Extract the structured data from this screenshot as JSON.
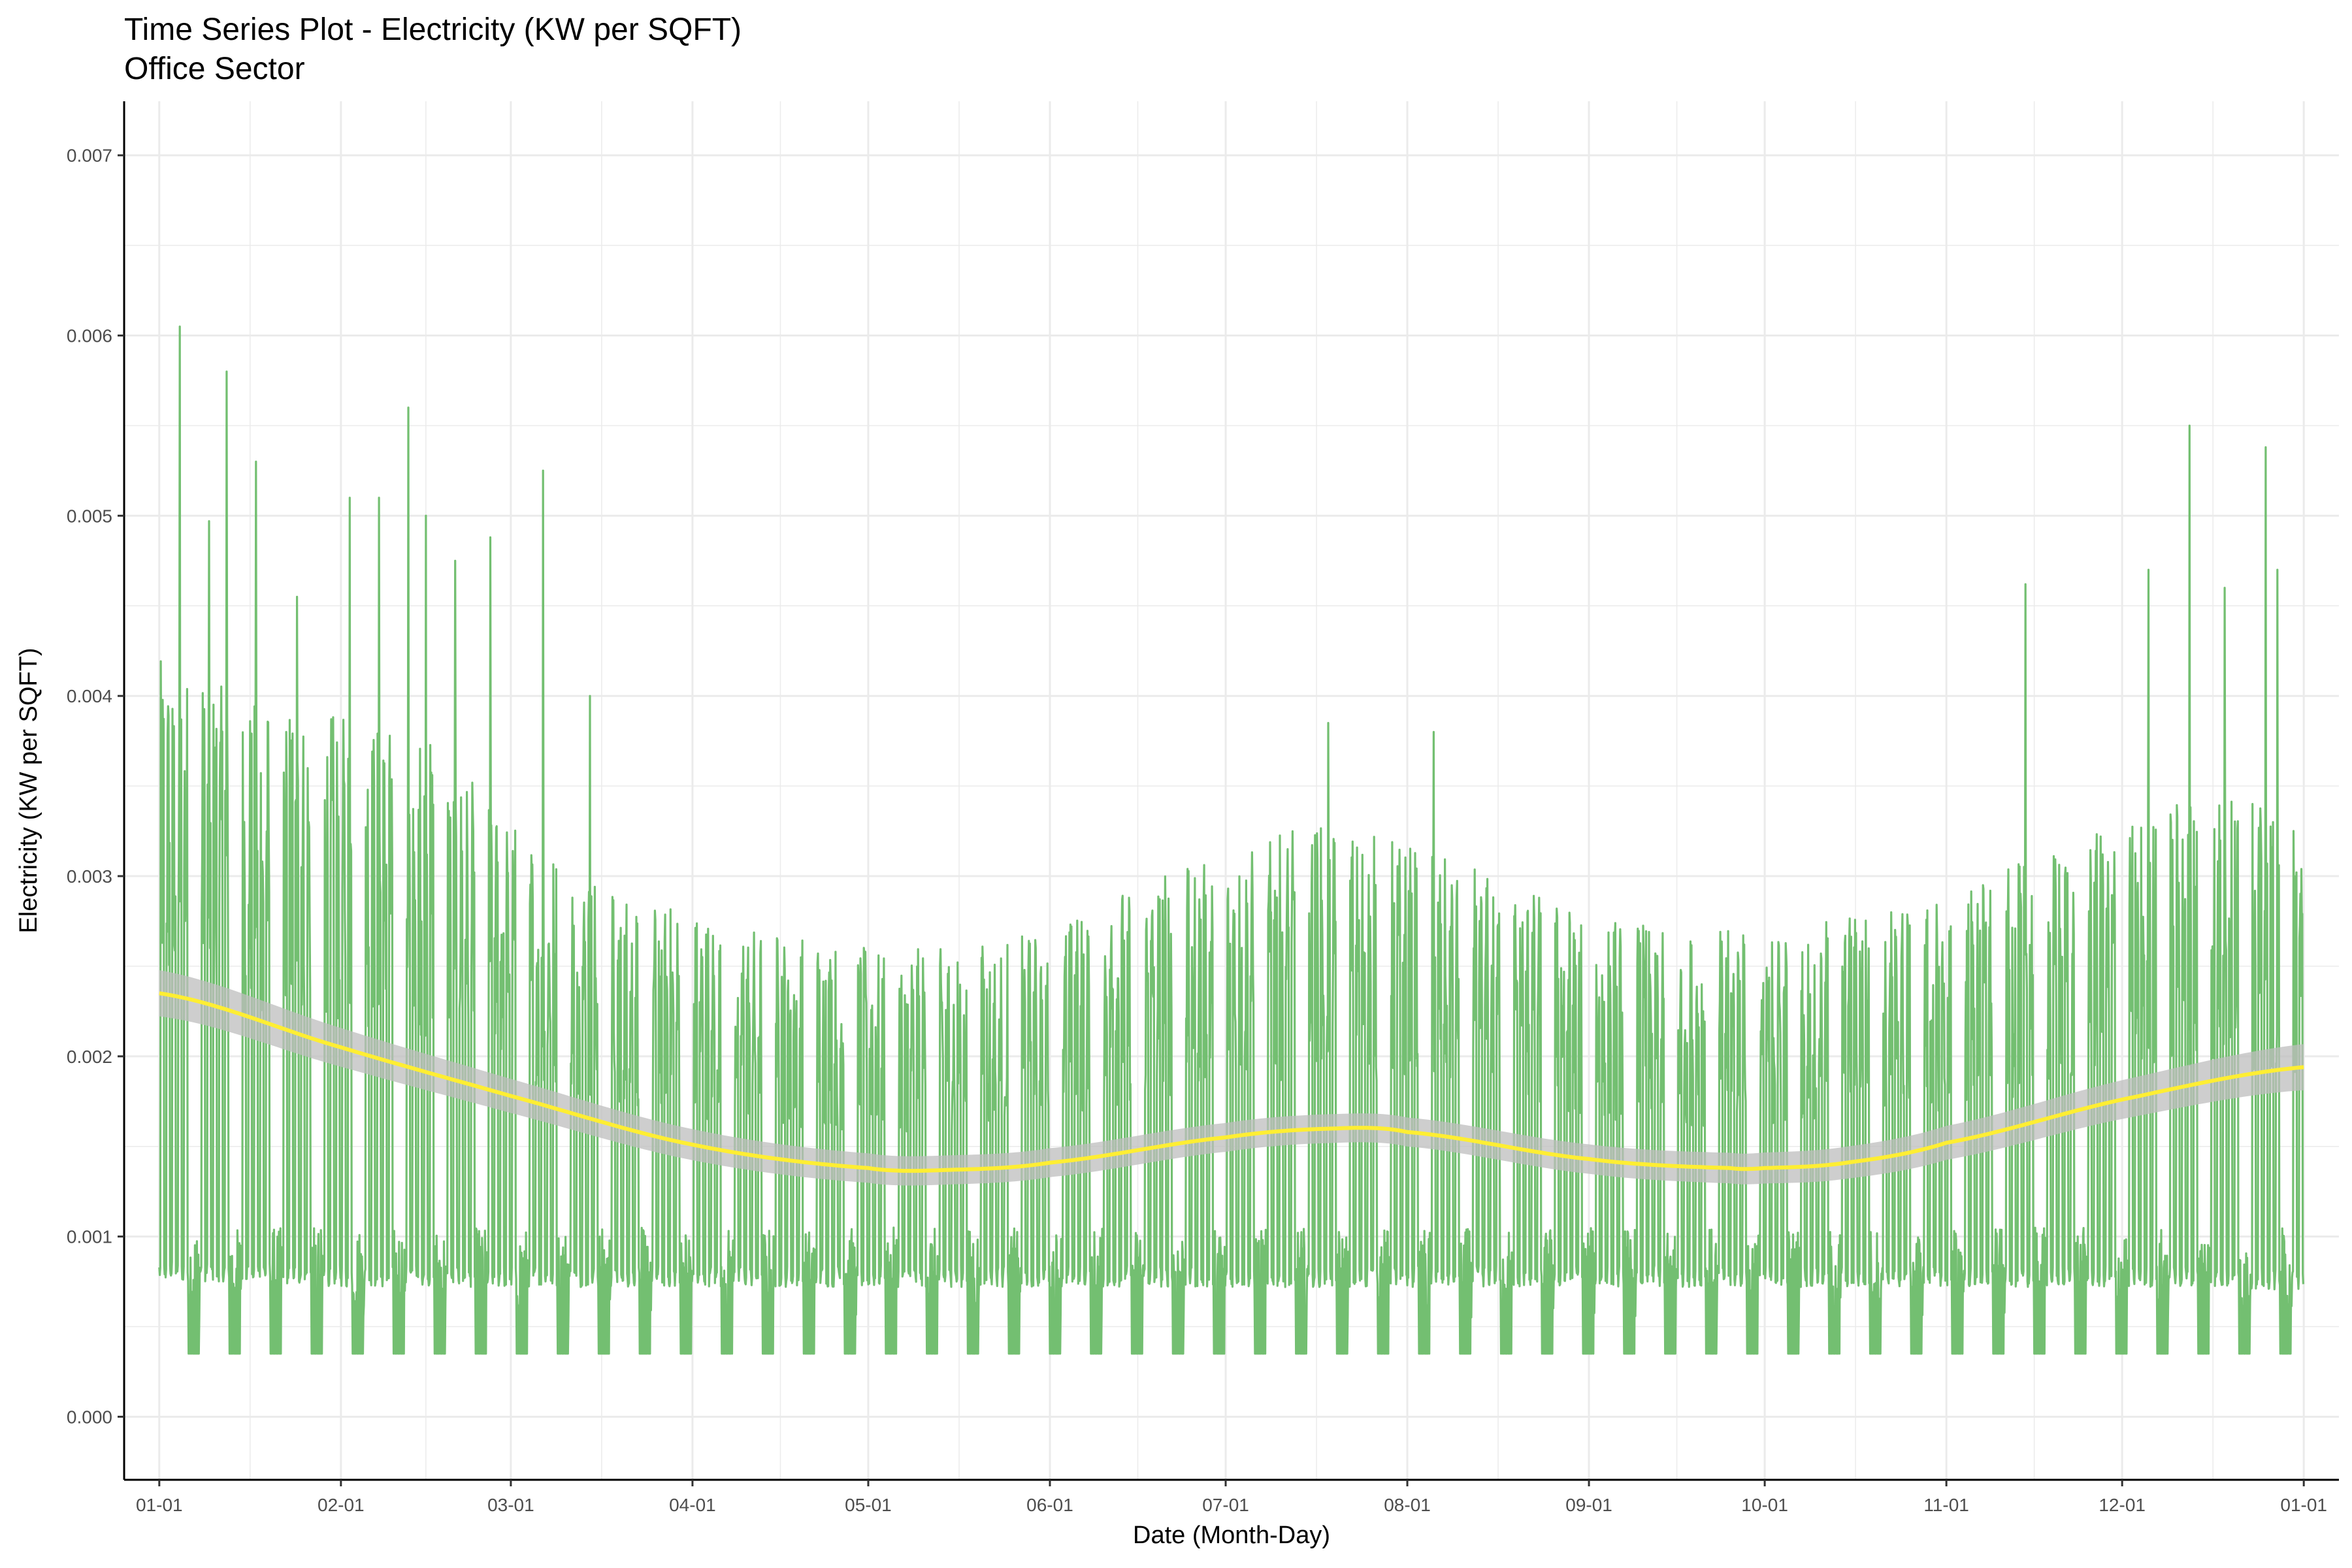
{
  "chart_data": {
    "type": "line",
    "title": "Time Series Plot - Electricity (KW per SQFT)",
    "subtitle": "Office Sector",
    "xlabel": "Date (Month-Day)",
    "ylabel": "Electricity (KW per SQFT)",
    "x_ticks": [
      "01-01",
      "02-01",
      "03-01",
      "04-01",
      "05-01",
      "06-01",
      "07-01",
      "08-01",
      "09-01",
      "10-01",
      "11-01",
      "12-01",
      "01-01"
    ],
    "y_ticks": [
      "0.000",
      "0.001",
      "0.002",
      "0.003",
      "0.004",
      "0.005",
      "0.006",
      "0.007"
    ],
    "xlim": [
      "2023-12-26",
      "2025-01-07"
    ],
    "ylim": [
      -0.00035,
      0.0073
    ],
    "grid": true,
    "colors": {
      "raw_series": "#73bf71",
      "smooth_line": "#ffee33",
      "confidence_band": "#bdbdbd",
      "grid": "#ebebeb",
      "axis": "#000000"
    },
    "series": [
      {
        "kind": "daily-range",
        "x": [
          "2024-01-01",
          "2024-01-15",
          "2024-02-01",
          "2024-02-15",
          "2024-03-01",
          "2024-03-15",
          "2024-04-01",
          "2024-04-15",
          "2024-05-01",
          "2024-05-15",
          "2024-06-01",
          "2024-06-15",
          "2024-07-01",
          "2024-07-15",
          "2024-08-01",
          "2024-08-15",
          "2024-09-01",
          "2024-09-15",
          "2024-10-01",
          "2024-10-15",
          "2024-11-01",
          "2024-11-15",
          "2024-12-01",
          "2024-12-15",
          "2025-01-01"
        ],
        "daily_peak": [
          0.0042,
          0.004,
          0.0039,
          0.0038,
          0.0033,
          0.003,
          0.0028,
          0.0027,
          0.0026,
          0.0026,
          0.0027,
          0.003,
          0.0031,
          0.0033,
          0.0032,
          0.003,
          0.0028,
          0.0027,
          0.0027,
          0.0028,
          0.0029,
          0.0031,
          0.0033,
          0.0035,
          0.0033
        ],
        "daily_low": [
          0.00075,
          0.00075,
          0.00072,
          0.00072,
          0.00072,
          0.00072,
          0.00072,
          0.00072,
          0.00072,
          0.00072,
          0.00072,
          0.00072,
          0.00072,
          0.00072,
          0.00072,
          0.00072,
          0.00072,
          0.00072,
          0.00072,
          0.00072,
          0.00072,
          0.00072,
          0.00072,
          0.00072,
          0.0007
        ],
        "weekend_low": 0.00035,
        "spikes": [
          {
            "x": "2024-01-04",
            "y": 0.00605
          },
          {
            "x": "2024-01-09",
            "y": 0.00497
          },
          {
            "x": "2024-01-12",
            "y": 0.0058
          },
          {
            "x": "2024-01-17",
            "y": 0.0053
          },
          {
            "x": "2024-01-24",
            "y": 0.00455
          },
          {
            "x": "2024-02-02",
            "y": 0.0051
          },
          {
            "x": "2024-02-07",
            "y": 0.0051
          },
          {
            "x": "2024-02-12",
            "y": 0.0056
          },
          {
            "x": "2024-02-15",
            "y": 0.005
          },
          {
            "x": "2024-02-20",
            "y": 0.00475
          },
          {
            "x": "2024-02-26",
            "y": 0.00488
          },
          {
            "x": "2024-03-06",
            "y": 0.00525
          },
          {
            "x": "2024-03-14",
            "y": 0.004
          },
          {
            "x": "2024-07-18",
            "y": 0.00385
          },
          {
            "x": "2024-08-05",
            "y": 0.0038
          },
          {
            "x": "2024-11-14",
            "y": 0.00462
          },
          {
            "x": "2024-12-05",
            "y": 0.0047
          },
          {
            "x": "2024-12-12",
            "y": 0.0055
          },
          {
            "x": "2024-12-18",
            "y": 0.0046
          },
          {
            "x": "2024-12-25",
            "y": 0.00538
          },
          {
            "x": "2024-12-27",
            "y": 0.0047
          }
        ]
      },
      {
        "kind": "smooth",
        "x": [
          "2024-01-01",
          "2024-02-01",
          "2024-03-01",
          "2024-04-01",
          "2024-05-01",
          "2024-05-15",
          "2024-06-01",
          "2024-07-01",
          "2024-07-20",
          "2024-08-01",
          "2024-09-01",
          "2024-09-25",
          "2024-10-01",
          "2024-10-15",
          "2024-11-01",
          "2024-12-01",
          "2025-01-01"
        ],
        "y": [
          0.00235,
          0.00205,
          0.00178,
          0.00151,
          0.00138,
          0.00137,
          0.00141,
          0.00155,
          0.0016,
          0.00158,
          0.00143,
          0.00138,
          0.00138,
          0.00141,
          0.00152,
          0.00176,
          0.00194
        ],
        "band_halfwidth": 8e-05
      }
    ]
  }
}
